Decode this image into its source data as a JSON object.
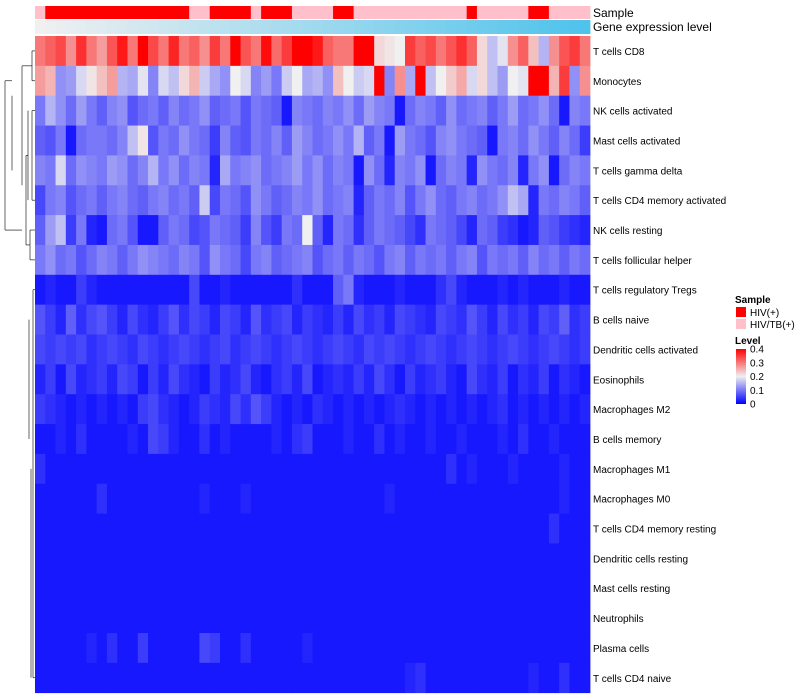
{
  "chart_data": {
    "type": "heatmap",
    "annotation_tracks": [
      "Sample",
      "Gene expression level"
    ],
    "rows": [
      "T cells CD8",
      "Monocytes",
      "NK cells activated",
      "Mast cells activated",
      "T cells gamma delta",
      "T cells CD4 memory activated",
      "NK cells resting",
      "T cells follicular helper",
      "T cells regulatory  Tregs",
      "B cells naive",
      "Dendritic cells activated",
      "Eosinophils",
      "Macrophages M2",
      "B cells memory",
      "Macrophages M1",
      "Macrophages M0",
      "T cells CD4 memory resting",
      "Dendritic cells resting",
      "Mast cells resting",
      "Neutrophils",
      "Plasma cells",
      "T cells CD4 naive"
    ],
    "sample_groups": [
      "HIV/TB(+)",
      "HIV(+)",
      "HIV(+)",
      "HIV(+)",
      "HIV(+)",
      "HIV(+)",
      "HIV(+)",
      "HIV(+)",
      "HIV(+)",
      "HIV(+)",
      "HIV(+)",
      "HIV(+)",
      "HIV(+)",
      "HIV(+)",
      "HIV(+)",
      "HIV/TB(+)",
      "HIV/TB(+)",
      "HIV(+)",
      "HIV(+)",
      "HIV(+)",
      "HIV(+)",
      "HIV/TB(+)",
      "HIV(+)",
      "HIV(+)",
      "HIV(+)",
      "HIV/TB(+)",
      "HIV/TB(+)",
      "HIV/TB(+)",
      "HIV/TB(+)",
      "HIV(+)",
      "HIV(+)",
      "HIV/TB(+)",
      "HIV/TB(+)",
      "HIV/TB(+)",
      "HIV/TB(+)",
      "HIV/TB(+)",
      "HIV/TB(+)",
      "HIV/TB(+)",
      "HIV/TB(+)",
      "HIV/TB(+)",
      "HIV/TB(+)",
      "HIV/TB(+)",
      "HIV(+)",
      "HIV/TB(+)",
      "HIV/TB(+)",
      "HIV/TB(+)",
      "HIV/TB(+)",
      "HIV/TB(+)",
      "HIV(+)",
      "HIV(+)",
      "HIV/TB(+)",
      "HIV/TB(+)",
      "HIV/TB(+)",
      "HIV/TB(+)"
    ],
    "expression_level_gradient": [
      "#f0f0f0",
      "#4fc3ec"
    ],
    "values": [
      [
        0.3,
        0.32,
        0.34,
        0.28,
        0.36,
        0.3,
        0.27,
        0.33,
        0.38,
        0.3,
        0.4,
        0.34,
        0.3,
        0.37,
        0.3,
        0.32,
        0.28,
        0.35,
        0.3,
        0.4,
        0.33,
        0.3,
        0.39,
        0.31,
        0.35,
        0.4,
        0.41,
        0.38,
        0.32,
        0.3,
        0.3,
        0.41,
        0.4,
        0.22,
        0.21,
        0.2,
        0.35,
        0.32,
        0.34,
        0.3,
        0.33,
        0.36,
        0.32,
        0.22,
        0.16,
        0.19,
        0.28,
        0.32,
        0.24,
        0.15,
        0.28,
        0.33,
        0.35,
        0.3
      ],
      [
        0.27,
        0.25,
        0.12,
        0.13,
        0.18,
        0.21,
        0.24,
        0.27,
        0.15,
        0.14,
        0.19,
        0.11,
        0.18,
        0.16,
        0.22,
        0.25,
        0.17,
        0.14,
        0.12,
        0.2,
        0.18,
        0.11,
        0.13,
        0.1,
        0.17,
        0.2,
        0.14,
        0.15,
        0.12,
        0.24,
        0.2,
        0.17,
        0.18,
        0.42,
        0.11,
        0.28,
        0.14,
        0.41,
        0.16,
        0.2,
        0.23,
        0.26,
        0.18,
        0.22,
        0.16,
        0.13,
        0.2,
        0.19,
        0.42,
        0.42,
        0.25,
        0.35,
        0.12,
        0.28
      ],
      [
        0.1,
        0.15,
        0.12,
        0.09,
        0.13,
        0.1,
        0.08,
        0.11,
        0.12,
        0.07,
        0.09,
        0.1,
        0.08,
        0.11,
        0.09,
        0.1,
        0.12,
        0.08,
        0.09,
        0.1,
        0.07,
        0.1,
        0.09,
        0.08,
        0.02,
        0.11,
        0.1,
        0.09,
        0.11,
        0.1,
        0.12,
        0.09,
        0.13,
        0.11,
        0.1,
        0.02,
        0.09,
        0.11,
        0.1,
        0.08,
        0.12,
        0.09,
        0.1,
        0.11,
        0.08,
        0.1,
        0.13,
        0.09,
        0.1,
        0.12,
        0.09,
        0.02,
        0.11,
        0.1
      ],
      [
        0.08,
        0.07,
        0.1,
        0.02,
        0.09,
        0.1,
        0.1,
        0.09,
        0.11,
        0.16,
        0.21,
        0.07,
        0.1,
        0.09,
        0.12,
        0.1,
        0.09,
        0.05,
        0.11,
        0.08,
        0.07,
        0.1,
        0.09,
        0.11,
        0.08,
        0.13,
        0.11,
        0.09,
        0.1,
        0.12,
        0.1,
        0.15,
        0.08,
        0.1,
        0.02,
        0.13,
        0.1,
        0.09,
        0.07,
        0.11,
        0.12,
        0.1,
        0.09,
        0.08,
        0.02,
        0.1,
        0.11,
        0.09,
        0.12,
        0.1,
        0.08,
        0.11,
        0.09,
        0.05
      ],
      [
        0.11,
        0.1,
        0.18,
        0.09,
        0.12,
        0.11,
        0.1,
        0.13,
        0.12,
        0.09,
        0.11,
        0.15,
        0.1,
        0.12,
        0.09,
        0.11,
        0.1,
        0.03,
        0.14,
        0.1,
        0.11,
        0.12,
        0.09,
        0.1,
        0.11,
        0.13,
        0.1,
        0.12,
        0.09,
        0.11,
        0.1,
        0.02,
        0.12,
        0.09,
        0.03,
        0.11,
        0.1,
        0.12,
        0.02,
        0.09,
        0.11,
        0.1,
        0.03,
        0.12,
        0.1,
        0.09,
        0.11,
        0.03,
        0.1,
        0.12,
        0.02,
        0.09,
        0.11,
        0.1
      ],
      [
        0.06,
        0.1,
        0.11,
        0.07,
        0.09,
        0.1,
        0.08,
        0.1,
        0.11,
        0.09,
        0.08,
        0.1,
        0.11,
        0.09,
        0.1,
        0.08,
        0.17,
        0.06,
        0.1,
        0.09,
        0.07,
        0.12,
        0.1,
        0.08,
        0.09,
        0.11,
        0.1,
        0.12,
        0.09,
        0.1,
        0.11,
        0.03,
        0.08,
        0.1,
        0.09,
        0.11,
        0.07,
        0.1,
        0.12,
        0.09,
        0.08,
        0.1,
        0.11,
        0.09,
        0.1,
        0.12,
        0.16,
        0.14,
        0.03,
        0.1,
        0.09,
        0.11,
        0.1,
        0.08
      ],
      [
        0.08,
        0.13,
        0.16,
        0.05,
        0.1,
        0.03,
        0.02,
        0.09,
        0.1,
        0.07,
        0.02,
        0.02,
        0.08,
        0.1,
        0.09,
        0.06,
        0.07,
        0.1,
        0.09,
        0.08,
        0.05,
        0.11,
        0.07,
        0.05,
        0.1,
        0.09,
        0.2,
        0.08,
        0.03,
        0.1,
        0.09,
        0.04,
        0.08,
        0.1,
        0.09,
        0.08,
        0.06,
        0.04,
        0.1,
        0.09,
        0.08,
        0.06,
        0.03,
        0.09,
        0.08,
        0.05,
        0.04,
        0.02,
        0.03,
        0.08,
        0.07,
        0.05,
        0.04,
        0.03
      ],
      [
        0.1,
        0.12,
        0.09,
        0.1,
        0.07,
        0.09,
        0.11,
        0.1,
        0.08,
        0.1,
        0.12,
        0.11,
        0.1,
        0.09,
        0.11,
        0.1,
        0.07,
        0.12,
        0.1,
        0.09,
        0.06,
        0.1,
        0.11,
        0.08,
        0.09,
        0.1,
        0.11,
        0.07,
        0.09,
        0.1,
        0.08,
        0.1,
        0.09,
        0.07,
        0.1,
        0.11,
        0.08,
        0.1,
        0.09,
        0.1,
        0.08,
        0.1,
        0.11,
        0.07,
        0.1,
        0.09,
        0.1,
        0.08,
        0.11,
        0.09,
        0.1,
        0.08,
        0.1,
        0.09
      ],
      [
        0.02,
        0.03,
        0.02,
        0.02,
        0.05,
        0.03,
        0.02,
        0.02,
        0.02,
        0.02,
        0.02,
        0.02,
        0.02,
        0.02,
        0.02,
        0.06,
        0.02,
        0.02,
        0.03,
        0.02,
        0.02,
        0.02,
        0.02,
        0.02,
        0.02,
        0.04,
        0.02,
        0.02,
        0.02,
        0.08,
        0.1,
        0.03,
        0.02,
        0.02,
        0.02,
        0.03,
        0.02,
        0.02,
        0.02,
        0.04,
        0.06,
        0.03,
        0.02,
        0.02,
        0.02,
        0.03,
        0.02,
        0.03,
        0.02,
        0.02,
        0.02,
        0.03,
        0.02,
        0.02
      ],
      [
        0.07,
        0.05,
        0.03,
        0.08,
        0.04,
        0.06,
        0.07,
        0.05,
        0.03,
        0.06,
        0.04,
        0.03,
        0.05,
        0.07,
        0.04,
        0.06,
        0.05,
        0.03,
        0.06,
        0.05,
        0.03,
        0.07,
        0.04,
        0.05,
        0.06,
        0.03,
        0.05,
        0.04,
        0.03,
        0.05,
        0.03,
        0.06,
        0.04,
        0.05,
        0.03,
        0.06,
        0.05,
        0.04,
        0.03,
        0.06,
        0.05,
        0.04,
        0.07,
        0.05,
        0.03,
        0.06,
        0.04,
        0.05,
        0.03,
        0.06,
        0.05,
        0.08,
        0.04,
        0.05
      ],
      [
        0.06,
        0.05,
        0.06,
        0.05,
        0.06,
        0.04,
        0.05,
        0.06,
        0.05,
        0.04,
        0.06,
        0.05,
        0.04,
        0.05,
        0.06,
        0.05,
        0.04,
        0.05,
        0.06,
        0.04,
        0.05,
        0.06,
        0.05,
        0.04,
        0.05,
        0.06,
        0.05,
        0.04,
        0.05,
        0.06,
        0.05,
        0.04,
        0.06,
        0.05,
        0.06,
        0.05,
        0.04,
        0.05,
        0.06,
        0.05,
        0.04,
        0.05,
        0.06,
        0.05,
        0.04,
        0.05,
        0.06,
        0.05,
        0.04,
        0.05,
        0.06,
        0.05,
        0.04,
        0.05
      ],
      [
        0.03,
        0.05,
        0.02,
        0.06,
        0.03,
        0.04,
        0.05,
        0.03,
        0.06,
        0.05,
        0.02,
        0.05,
        0.03,
        0.06,
        0.04,
        0.03,
        0.02,
        0.05,
        0.03,
        0.04,
        0.06,
        0.03,
        0.02,
        0.04,
        0.05,
        0.03,
        0.06,
        0.02,
        0.03,
        0.04,
        0.03,
        0.05,
        0.03,
        0.06,
        0.04,
        0.02,
        0.05,
        0.03,
        0.04,
        0.05,
        0.03,
        0.02,
        0.06,
        0.04,
        0.03,
        0.05,
        0.02,
        0.04,
        0.03,
        0.05,
        0.02,
        0.04,
        0.03,
        0.02
      ],
      [
        0.05,
        0.04,
        0.03,
        0.02,
        0.03,
        0.02,
        0.03,
        0.02,
        0.03,
        0.02,
        0.05,
        0.06,
        0.04,
        0.03,
        0.02,
        0.03,
        0.05,
        0.04,
        0.03,
        0.06,
        0.04,
        0.07,
        0.05,
        0.03,
        0.02,
        0.03,
        0.02,
        0.04,
        0.03,
        0.02,
        0.03,
        0.02,
        0.03,
        0.02,
        0.03,
        0.04,
        0.03,
        0.02,
        0.03,
        0.02,
        0.03,
        0.02,
        0.03,
        0.02,
        0.03,
        0.04,
        0.02,
        0.03,
        0.02,
        0.03,
        0.02,
        0.03,
        0.02,
        0.03
      ],
      [
        0.02,
        0.02,
        0.03,
        0.02,
        0.04,
        0.02,
        0.02,
        0.02,
        0.02,
        0.03,
        0.02,
        0.06,
        0.05,
        0.03,
        0.02,
        0.02,
        0.04,
        0.02,
        0.03,
        0.02,
        0.02,
        0.02,
        0.02,
        0.03,
        0.02,
        0.04,
        0.05,
        0.02,
        0.02,
        0.02,
        0.03,
        0.02,
        0.02,
        0.04,
        0.02,
        0.03,
        0.02,
        0.02,
        0.03,
        0.02,
        0.02,
        0.03,
        0.02,
        0.02,
        0.02,
        0.03,
        0.02,
        0.04,
        0.02,
        0.02,
        0.03,
        0.02,
        0.02,
        0.02
      ],
      [
        0.04,
        0.02,
        0.02,
        0.02,
        0.02,
        0.02,
        0.02,
        0.02,
        0.02,
        0.02,
        0.02,
        0.02,
        0.02,
        0.02,
        0.02,
        0.02,
        0.02,
        0.02,
        0.02,
        0.02,
        0.02,
        0.02,
        0.02,
        0.02,
        0.02,
        0.02,
        0.02,
        0.02,
        0.02,
        0.02,
        0.02,
        0.02,
        0.02,
        0.02,
        0.02,
        0.02,
        0.02,
        0.02,
        0.02,
        0.02,
        0.04,
        0.02,
        0.03,
        0.02,
        0.02,
        0.02,
        0.03,
        0.02,
        0.02,
        0.02,
        0.02,
        0.03,
        0.02,
        0.02
      ],
      [
        0.02,
        0.02,
        0.02,
        0.02,
        0.02,
        0.02,
        0.04,
        0.02,
        0.02,
        0.02,
        0.02,
        0.02,
        0.02,
        0.02,
        0.02,
        0.02,
        0.03,
        0.02,
        0.02,
        0.02,
        0.03,
        0.02,
        0.02,
        0.02,
        0.02,
        0.02,
        0.02,
        0.02,
        0.02,
        0.02,
        0.02,
        0.02,
        0.02,
        0.02,
        0.03,
        0.02,
        0.02,
        0.02,
        0.02,
        0.02,
        0.02,
        0.02,
        0.02,
        0.02,
        0.02,
        0.02,
        0.02,
        0.02,
        0.02,
        0.02,
        0.02,
        0.03,
        0.02,
        0.02
      ],
      [
        0.02,
        0.02,
        0.02,
        0.02,
        0.02,
        0.02,
        0.02,
        0.02,
        0.02,
        0.02,
        0.02,
        0.02,
        0.02,
        0.02,
        0.02,
        0.02,
        0.02,
        0.02,
        0.02,
        0.02,
        0.02,
        0.02,
        0.02,
        0.02,
        0.02,
        0.02,
        0.02,
        0.02,
        0.02,
        0.02,
        0.02,
        0.02,
        0.02,
        0.02,
        0.02,
        0.02,
        0.02,
        0.02,
        0.02,
        0.02,
        0.02,
        0.02,
        0.02,
        0.02,
        0.02,
        0.02,
        0.02,
        0.02,
        0.02,
        0.02,
        0.04,
        0.02,
        0.02,
        0.02
      ],
      [
        0.02,
        0.02,
        0.02,
        0.02,
        0.02,
        0.02,
        0.02,
        0.02,
        0.02,
        0.02,
        0.02,
        0.02,
        0.02,
        0.02,
        0.02,
        0.02,
        0.02,
        0.02,
        0.02,
        0.02,
        0.02,
        0.02,
        0.02,
        0.02,
        0.02,
        0.02,
        0.02,
        0.02,
        0.02,
        0.02,
        0.02,
        0.02,
        0.02,
        0.02,
        0.02,
        0.02,
        0.02,
        0.02,
        0.02,
        0.02,
        0.02,
        0.02,
        0.02,
        0.02,
        0.02,
        0.02,
        0.02,
        0.02,
        0.02,
        0.02,
        0.02,
        0.02,
        0.02,
        0.02
      ],
      [
        0.02,
        0.02,
        0.02,
        0.02,
        0.02,
        0.02,
        0.02,
        0.02,
        0.02,
        0.02,
        0.02,
        0.02,
        0.02,
        0.02,
        0.02,
        0.02,
        0.02,
        0.02,
        0.02,
        0.02,
        0.02,
        0.02,
        0.02,
        0.02,
        0.02,
        0.02,
        0.02,
        0.02,
        0.02,
        0.02,
        0.02,
        0.02,
        0.02,
        0.02,
        0.02,
        0.02,
        0.02,
        0.02,
        0.02,
        0.02,
        0.02,
        0.02,
        0.02,
        0.02,
        0.02,
        0.02,
        0.02,
        0.02,
        0.02,
        0.02,
        0.02,
        0.02,
        0.02,
        0.02
      ],
      [
        0.02,
        0.02,
        0.02,
        0.02,
        0.02,
        0.02,
        0.02,
        0.02,
        0.02,
        0.02,
        0.02,
        0.02,
        0.02,
        0.02,
        0.02,
        0.02,
        0.02,
        0.02,
        0.02,
        0.02,
        0.02,
        0.02,
        0.02,
        0.02,
        0.02,
        0.02,
        0.02,
        0.02,
        0.02,
        0.02,
        0.02,
        0.02,
        0.02,
        0.02,
        0.02,
        0.02,
        0.02,
        0.02,
        0.02,
        0.02,
        0.02,
        0.02,
        0.02,
        0.02,
        0.02,
        0.02,
        0.02,
        0.02,
        0.02,
        0.02,
        0.02,
        0.02,
        0.02,
        0.02
      ],
      [
        0.02,
        0.02,
        0.02,
        0.02,
        0.02,
        0.03,
        0.02,
        0.04,
        0.02,
        0.02,
        0.05,
        0.02,
        0.02,
        0.02,
        0.02,
        0.02,
        0.06,
        0.05,
        0.02,
        0.02,
        0.04,
        0.02,
        0.02,
        0.02,
        0.02,
        0.02,
        0.03,
        0.02,
        0.02,
        0.02,
        0.02,
        0.02,
        0.02,
        0.02,
        0.02,
        0.02,
        0.02,
        0.02,
        0.02,
        0.02,
        0.02,
        0.02,
        0.02,
        0.02,
        0.02,
        0.02,
        0.02,
        0.02,
        0.02,
        0.02,
        0.02,
        0.02,
        0.02,
        0.02
      ],
      [
        0.02,
        0.02,
        0.02,
        0.02,
        0.02,
        0.02,
        0.02,
        0.02,
        0.02,
        0.02,
        0.02,
        0.02,
        0.02,
        0.02,
        0.02,
        0.02,
        0.02,
        0.02,
        0.02,
        0.02,
        0.02,
        0.02,
        0.02,
        0.02,
        0.02,
        0.02,
        0.02,
        0.02,
        0.02,
        0.02,
        0.02,
        0.02,
        0.02,
        0.02,
        0.02,
        0.02,
        0.03,
        0.04,
        0.02,
        0.02,
        0.02,
        0.02,
        0.02,
        0.02,
        0.02,
        0.02,
        0.02,
        0.02,
        0.03,
        0.02,
        0.02,
        0.04,
        0.02,
        0.02
      ]
    ],
    "colorscale": {
      "low": "#0000ff",
      "mid": "#f0f0f0",
      "high": "#ff0000",
      "domain": [
        0,
        0.2,
        0.4
      ]
    },
    "legend": {
      "sample_title": "Sample",
      "sample_items": [
        {
          "label": "HIV(+)",
          "color": "#ff0000"
        },
        {
          "label": "HIV/TB(+)",
          "color": "#ffc0cb"
        }
      ],
      "level_title": "Level",
      "level_ticks": [
        "0.4",
        "0.3",
        "0.2",
        "0.1",
        "0"
      ],
      "level_tick_values": [
        0.4,
        0.3,
        0.2,
        0.1,
        0
      ]
    }
  }
}
